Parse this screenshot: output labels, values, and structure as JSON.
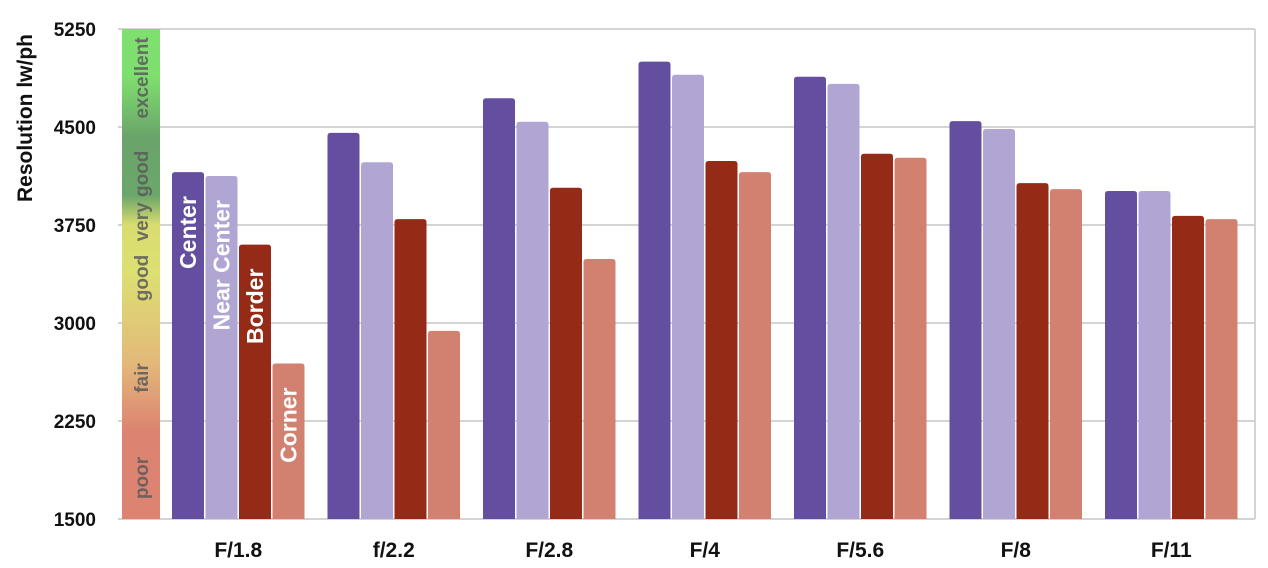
{
  "chart_data": {
    "type": "bar",
    "title": "",
    "xlabel": "",
    "ylabel": "Resolution lw/ph",
    "ylim": [
      1500,
      5250
    ],
    "yticks": [
      "1500",
      "2250",
      "3000",
      "3750",
      "4500",
      "5250"
    ],
    "grid": true,
    "categories": [
      "F/1.8",
      "f/2.2",
      "F/2.8",
      "F/4",
      "F/5.6",
      "F/8",
      "F/11"
    ],
    "series": [
      {
        "name": "Center",
        "color": "#644ea0",
        "values": [
          4155,
          4455,
          4720,
          5000,
          4885,
          4545,
          4010
        ]
      },
      {
        "name": "Near Center",
        "color": "#b1a6d3",
        "values": [
          4125,
          4230,
          4540,
          4900,
          4830,
          4485,
          4010
        ]
      },
      {
        "name": "Border",
        "color": "#952a16",
        "values": [
          3600,
          3795,
          4035,
          4240,
          4295,
          4070,
          3820
        ]
      },
      {
        "name": "Corner",
        "color": "#d28170",
        "values": [
          2690,
          2940,
          3490,
          4155,
          4265,
          4025,
          3795
        ]
      }
    ],
    "rating_bands": [
      "poor",
      "fair",
      "good",
      "very good",
      "excellent"
    ]
  }
}
